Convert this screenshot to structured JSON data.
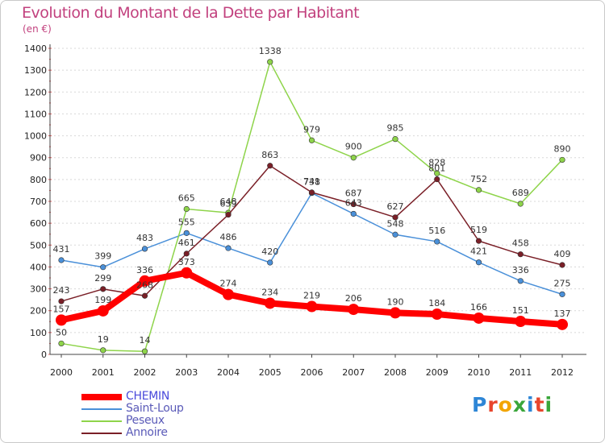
{
  "header": {
    "title": "Evolution du Montant de la Dette par Habitant",
    "subtitle": "(en €)"
  },
  "logo": {
    "letters": [
      "P",
      "r",
      "o",
      "x",
      "i",
      "t",
      "i"
    ],
    "colors": [
      "#2e86d6",
      "#e8452c",
      "#f2a500",
      "#3aa63a",
      "#2e86d6",
      "#e8452c",
      "#3aa63a"
    ]
  },
  "chart_data": {
    "type": "line",
    "title": "Evolution du Montant de la Dette par Habitant",
    "subtitle": "(en €)",
    "xlabel": "",
    "ylabel": "",
    "x": [
      "2000",
      "2001",
      "2002",
      "2003",
      "2004",
      "2005",
      "2006",
      "2007",
      "2008",
      "2009",
      "2010",
      "2011",
      "2012"
    ],
    "ylim": [
      0,
      1400
    ],
    "yticks": [
      0,
      100,
      200,
      300,
      400,
      500,
      600,
      700,
      800,
      900,
      1000,
      1100,
      1200,
      1300,
      1400
    ],
    "grid": "horizontal dotted",
    "legend": "bottom-left",
    "series": [
      {
        "name": "CHEMIN",
        "color": "#ff0000",
        "values": [
          157,
          199,
          336,
          373,
          274,
          234,
          219,
          206,
          190,
          184,
          166,
          151,
          137
        ]
      },
      {
        "name": "Saint-Loup",
        "color": "#4a90d9",
        "values": [
          431,
          399,
          483,
          555,
          486,
          420,
          738,
          643,
          548,
          516,
          421,
          336,
          275
        ]
      },
      {
        "name": "Peseux",
        "color": "#8ed44a",
        "values": [
          50,
          19,
          14,
          665,
          648,
          1338,
          979,
          900,
          985,
          828,
          752,
          689,
          890
        ]
      },
      {
        "name": "Annoire",
        "color": "#7a1f27",
        "values": [
          243,
          299,
          268,
          461,
          639,
          863,
          741,
          687,
          627,
          801,
          519,
          458,
          409
        ]
      }
    ]
  }
}
